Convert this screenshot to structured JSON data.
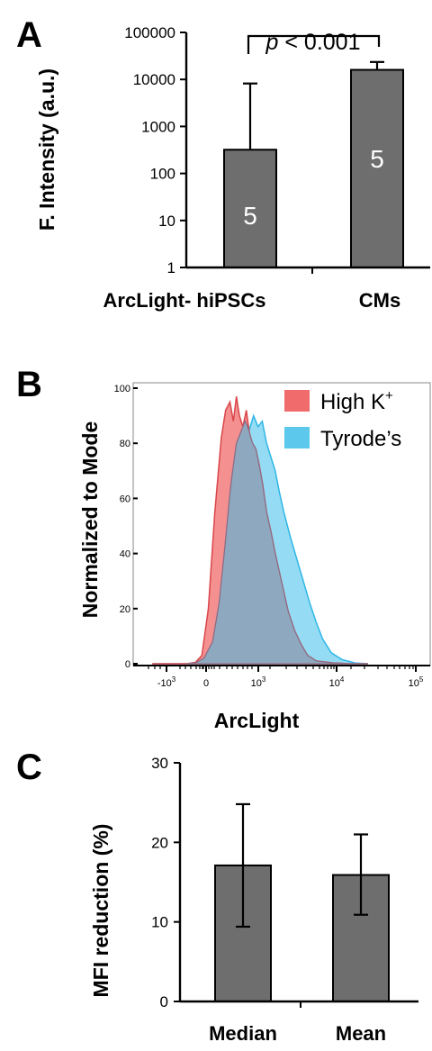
{
  "panels": {
    "a": {
      "letter": "A"
    },
    "b": {
      "letter": "B"
    },
    "c": {
      "letter": "C"
    }
  },
  "chart_data": [
    {
      "panel": "A",
      "type": "bar",
      "ylabel": "F. Intensity (a.u.)",
      "yscale": "log",
      "ylim": [
        1,
        100000
      ],
      "yticks": [
        "1",
        "10",
        "100",
        "1000",
        "10000",
        "100000"
      ],
      "categories": [
        "ArcLight- hiPSCs",
        "CMs"
      ],
      "values": [
        320,
        16000
      ],
      "error_upper": [
        8200,
        23500
      ],
      "bar_labels": [
        "5",
        "5"
      ],
      "bar_color": "#6e6e6e",
      "annotation": {
        "p_symbol": "p",
        "p_rest": " < 0.001"
      }
    },
    {
      "panel": "B",
      "type": "area",
      "xlabel": "ArcLight",
      "ylabel": "Normalized to Mode",
      "ylim": [
        0,
        100
      ],
      "yticks": [
        "0",
        "20",
        "40",
        "60",
        "80",
        "100"
      ],
      "xticks": [
        {
          "base": "-10",
          "exp": "3"
        },
        {
          "base": "0",
          "exp": ""
        },
        {
          "base": "10",
          "exp": "3"
        },
        {
          "base": "10",
          "exp": "4"
        },
        {
          "base": "10",
          "exp": "5"
        }
      ],
      "legend_position": "top-right",
      "series": [
        {
          "name": "High K",
          "name_sup": "+",
          "color": "#f06b6b",
          "x": [
            -1.0,
            -0.6,
            -0.2,
            0,
            0.15,
            0.3,
            0.45,
            0.6,
            0.7,
            0.8,
            0.88,
            0.95,
            1.02,
            1.1,
            1.18,
            1.25,
            1.32,
            1.4,
            1.48,
            1.56,
            1.65,
            1.75,
            1.85,
            1.95,
            2.05,
            2.15,
            2.3,
            2.45,
            2.6,
            2.8,
            3.2,
            3.6,
            4.0
          ],
          "y": [
            0,
            0,
            0,
            0.5,
            3,
            20,
            55,
            82,
            92,
            95,
            88,
            97,
            90,
            86,
            92,
            84,
            80,
            78,
            72,
            65,
            55,
            48,
            40,
            33,
            26,
            19,
            12,
            7,
            3,
            1,
            0.3,
            0,
            0
          ]
        },
        {
          "name": "Tyrode’s",
          "name_sup": "",
          "color": "#5bc8ec",
          "x": [
            -1.0,
            -0.6,
            -0.2,
            0,
            0.2,
            0.4,
            0.55,
            0.7,
            0.82,
            0.95,
            1.05,
            1.15,
            1.25,
            1.35,
            1.45,
            1.55,
            1.65,
            1.75,
            1.85,
            1.95,
            2.05,
            2.2,
            2.35,
            2.5,
            2.65,
            2.8,
            2.95,
            3.15,
            3.4,
            3.7,
            4.0
          ],
          "y": [
            0,
            0,
            0,
            0.3,
            2,
            8,
            22,
            45,
            65,
            80,
            84,
            88,
            85,
            90,
            86,
            88,
            80,
            75,
            70,
            62,
            55,
            46,
            38,
            30,
            22,
            15,
            9,
            4,
            1.5,
            0.3,
            0
          ]
        }
      ]
    },
    {
      "panel": "C",
      "type": "bar",
      "ylabel": "MFI reduction (%)",
      "ylim": [
        0,
        30
      ],
      "yticks": [
        "0",
        "10",
        "20",
        "30"
      ],
      "categories": [
        "Median",
        "Mean"
      ],
      "values": [
        17.1,
        15.9
      ],
      "error_lower": [
        9.4,
        10.9
      ],
      "error_upper": [
        24.8,
        21.0
      ],
      "bar_color": "#6e6e6e"
    }
  ]
}
